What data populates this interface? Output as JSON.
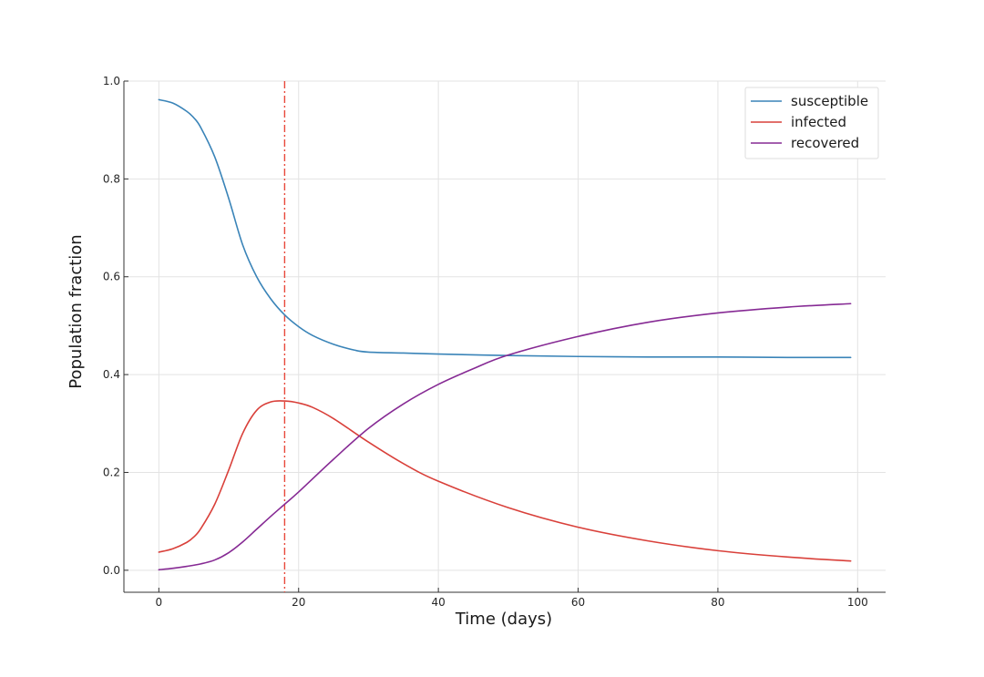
{
  "chart_data": {
    "type": "line",
    "title": "",
    "xlabel": "Time (days)",
    "ylabel": "Population fraction",
    "xlim": [
      -5,
      104
    ],
    "ylim": [
      -0.045,
      1.0
    ],
    "xticks": [
      0,
      20,
      40,
      60,
      80,
      100
    ],
    "yticks": [
      0.0,
      0.2,
      0.4,
      0.6,
      0.8,
      1.0
    ],
    "xtick_labels": [
      "0",
      "20",
      "40",
      "60",
      "80",
      "100"
    ],
    "ytick_labels": [
      "0.0",
      "0.2",
      "0.4",
      "0.6",
      "0.8",
      "1.0"
    ],
    "grid": true,
    "legend_position": "top-right",
    "vline": {
      "x": 18,
      "color": "#e8483b",
      "style": "dash-dot"
    },
    "series": [
      {
        "name": "susceptible",
        "color": "#3a84b8",
        "x": [
          0,
          2,
          4,
          5,
          6,
          8,
          10,
          12,
          14,
          16,
          18,
          20,
          22,
          25,
          28,
          30,
          35,
          40,
          50,
          60,
          70,
          80,
          90,
          99
        ],
        "y": [
          0.962,
          0.955,
          0.938,
          0.925,
          0.905,
          0.845,
          0.76,
          0.665,
          0.6,
          0.555,
          0.522,
          0.498,
          0.48,
          0.462,
          0.45,
          0.446,
          0.444,
          0.442,
          0.439,
          0.437,
          0.436,
          0.436,
          0.435,
          0.435
        ]
      },
      {
        "name": "infected",
        "color": "#d9403a",
        "x": [
          0,
          2,
          4,
          5,
          6,
          8,
          10,
          12,
          14,
          16,
          18,
          20,
          22,
          25,
          30,
          35,
          40,
          50,
          60,
          70,
          80,
          90,
          99
        ],
        "y": [
          0.037,
          0.044,
          0.057,
          0.068,
          0.085,
          0.135,
          0.205,
          0.28,
          0.327,
          0.344,
          0.346,
          0.342,
          0.333,
          0.31,
          0.262,
          0.218,
          0.182,
          0.128,
          0.088,
          0.06,
          0.04,
          0.027,
          0.019
        ]
      },
      {
        "name": "recovered",
        "color": "#862a94",
        "x": [
          0,
          2,
          4,
          6,
          8,
          10,
          12,
          14,
          16,
          18,
          20,
          25,
          30,
          35,
          40,
          45,
          50,
          60,
          70,
          80,
          90,
          99
        ],
        "y": [
          0.001,
          0.004,
          0.008,
          0.013,
          0.021,
          0.036,
          0.058,
          0.084,
          0.11,
          0.135,
          0.16,
          0.227,
          0.29,
          0.34,
          0.38,
          0.412,
          0.44,
          0.478,
          0.507,
          0.526,
          0.538,
          0.545
        ]
      }
    ]
  }
}
